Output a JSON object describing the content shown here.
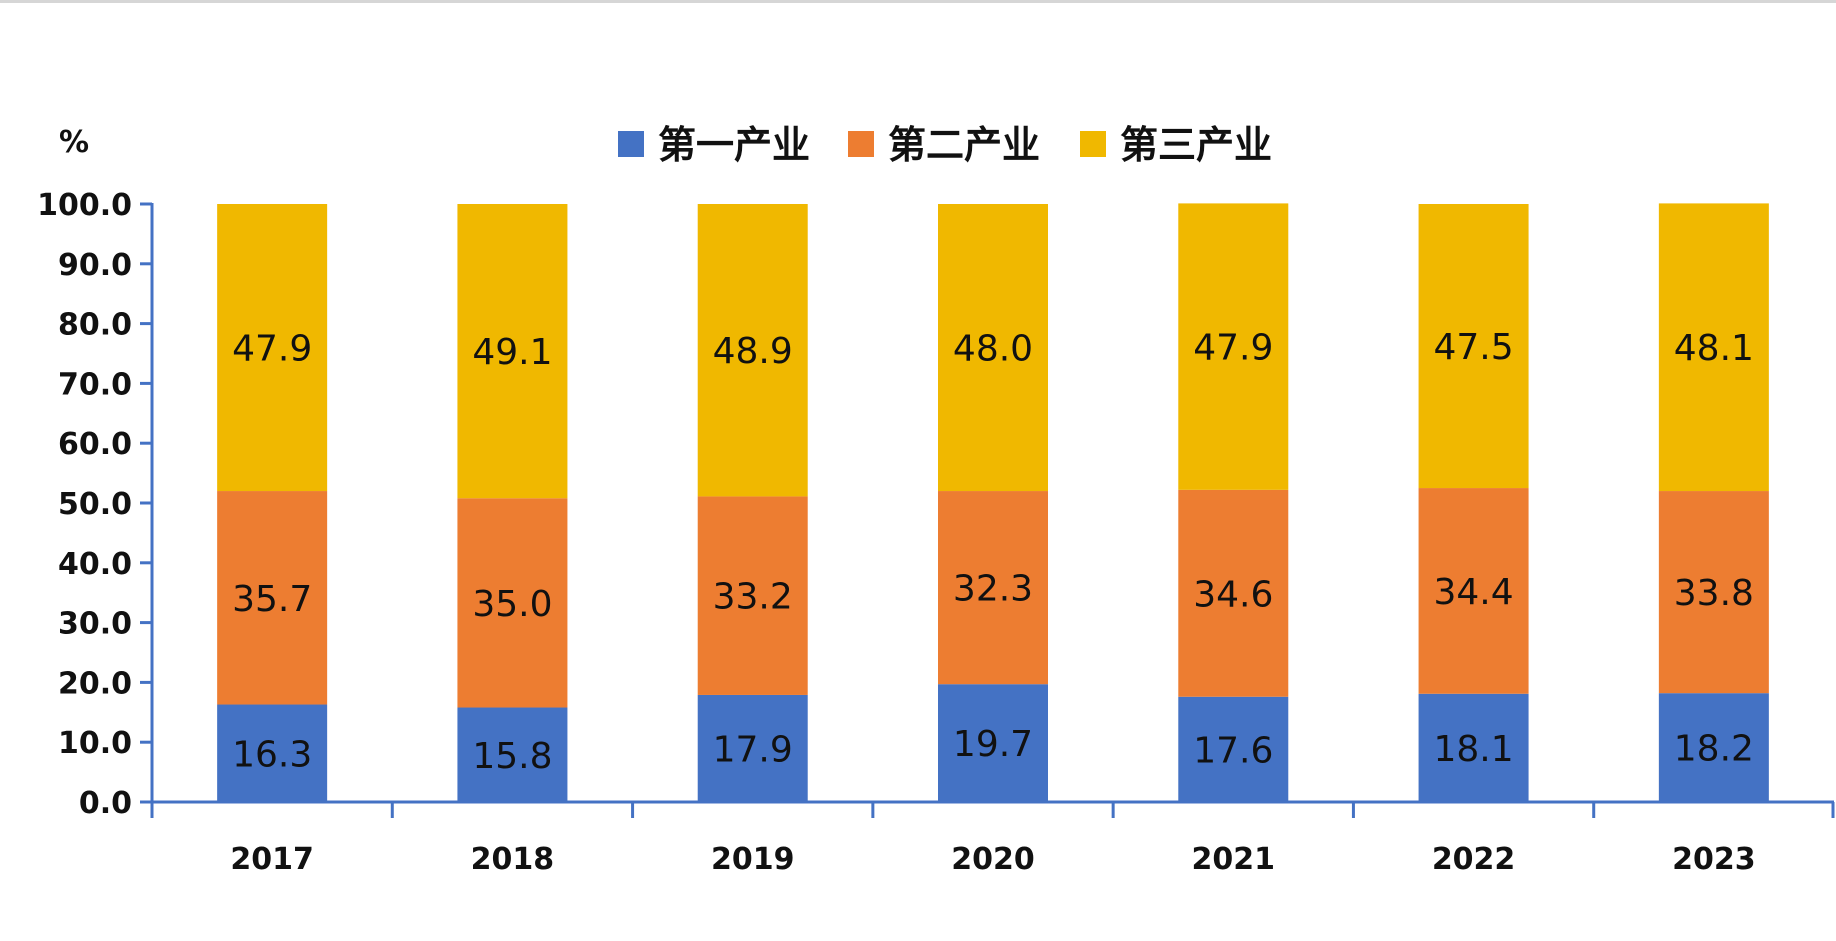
{
  "chart_data": {
    "type": "bar",
    "stacked": true,
    "title": "",
    "xlabel": "",
    "ylabel": "%",
    "ylim": [
      0,
      100
    ],
    "yticks": [
      "0.0",
      "10.0",
      "20.0",
      "30.0",
      "40.0",
      "50.0",
      "60.0",
      "70.0",
      "80.0",
      "90.0",
      "100.0"
    ],
    "categories": [
      "2017",
      "2018",
      "2019",
      "2020",
      "2021",
      "2022",
      "2023"
    ],
    "series": [
      {
        "name": "第一产业",
        "color": "#4472C4",
        "values": [
          16.3,
          15.8,
          17.9,
          19.7,
          17.6,
          18.1,
          18.2
        ]
      },
      {
        "name": "第二产业",
        "color": "#ED7D31",
        "values": [
          35.7,
          35.0,
          33.2,
          32.3,
          34.6,
          34.4,
          33.8
        ]
      },
      {
        "name": "第三产业",
        "color": "#F0B800",
        "values": [
          47.9,
          49.1,
          48.9,
          48.0,
          47.9,
          47.5,
          48.1
        ]
      }
    ],
    "legend_position": "top",
    "grid": false,
    "axis_color": "#4472C4"
  }
}
